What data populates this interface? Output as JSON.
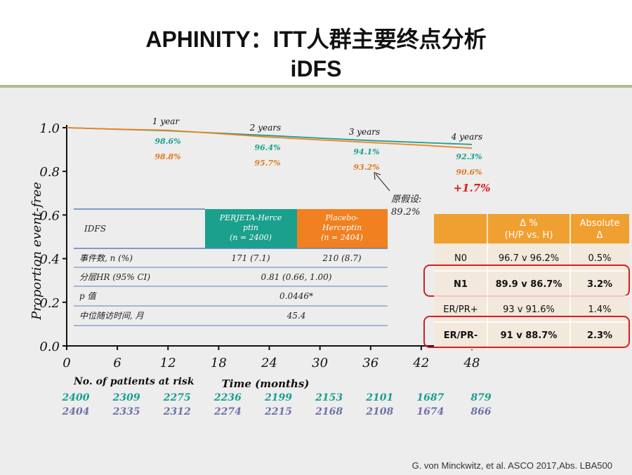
{
  "title": {
    "line1": "APHINITY：ITT人群主要终点分析",
    "line2": "iDFS"
  },
  "citation": "G. von Minckwitz, et al. ASCO 2017,Abs. LBA500",
  "colors": {
    "perjeta": "#1aa08c",
    "placebo": "#f08020",
    "placebo_text": "#e07a20",
    "blue_line": "#5a80b8",
    "red_box": "#d42020",
    "orange_header": "#f0a030",
    "highlight_red": "#e01818",
    "risk_purple": "#7070a8"
  },
  "chart_data": {
    "type": "line",
    "xlabel": "Time (months)",
    "ylabel": "Proportion event-free",
    "xlim": [
      0,
      48
    ],
    "ylim": [
      0.0,
      1.0
    ],
    "xticks": [
      "0",
      "6",
      "12",
      "18",
      "24",
      "30",
      "36",
      "42",
      "48"
    ],
    "yticks": [
      "0.0",
      "0.2",
      "0.4",
      "0.6",
      "0.8",
      "1.0"
    ],
    "series": [
      {
        "name": "PERJETA-Herceptin",
        "color": "#1aa08c",
        "x": [
          0,
          6,
          12,
          18,
          24,
          30,
          36,
          42,
          48
        ],
        "y": [
          1.0,
          0.993,
          0.986,
          0.975,
          0.964,
          0.952,
          0.941,
          0.932,
          0.923
        ]
      },
      {
        "name": "Placebo-Herceptin",
        "color": "#f08020",
        "x": [
          0,
          6,
          12,
          18,
          24,
          30,
          36,
          42,
          48
        ],
        "y": [
          1.0,
          0.993,
          0.988,
          0.973,
          0.957,
          0.944,
          0.932,
          0.92,
          0.906
        ]
      }
    ],
    "annotations": [
      {
        "label": "1 year",
        "perjeta": "98.6%",
        "placebo": "98.8%"
      },
      {
        "label": "2 years",
        "perjeta": "96.4%",
        "placebo": "95.7%"
      },
      {
        "label": "3  years",
        "perjeta": "94.1%",
        "placebo": "93.2%"
      },
      {
        "label": "4 years",
        "perjeta": "92.3%",
        "placebo": "90.6%"
      }
    ],
    "delta_4y": "+1.7%",
    "assumption": {
      "line1": "原假设:",
      "line2": "89.2%"
    },
    "risk_table": {
      "label": "No. of patients at risk",
      "perjeta": [
        "2400",
        "2309",
        "2275",
        "2236",
        "2199",
        "2153",
        "2101",
        "1687",
        "879"
      ],
      "placebo": [
        "2404",
        "2335",
        "2312",
        "2274",
        "2215",
        "2168",
        "2108",
        "1674",
        "866"
      ]
    }
  },
  "inner_table": {
    "col0_header": "IDFS",
    "col1_header": "PERJETA-Hercep tin (n = 2400)",
    "col1_header_l1": "PERJETA-Herce",
    "col1_header_l2": "ptin",
    "col1_header_l3": "(n = 2400)",
    "col2_header_l1": "Placebo-",
    "col2_header_l2": "Herceptin",
    "col2_header_l3": "(n = 2404)",
    "rows": [
      {
        "label": "事件数, n (%)",
        "v1": "171 (7.1)",
        "v2": "210 (8.7)"
      },
      {
        "label": "分层HR (95% CI)",
        "merged": "0.81 (0.66, 1.00)"
      },
      {
        "label": "p  值",
        "merged": "0.0446*"
      },
      {
        "label": "中位随访时间, 月",
        "merged": "45.4"
      }
    ]
  },
  "subgroup_table": {
    "headers": [
      "",
      "Δ %\n(H/P vs. H)",
      "Absolute\nΔ"
    ],
    "header_l1": [
      "",
      "Δ %",
      "Absolute"
    ],
    "header_l2": [
      "",
      "(H/P vs. H)",
      "Δ"
    ],
    "rows": [
      {
        "group": "N0",
        "delta": "96.7 v 96.2%",
        "abs": "0.5%",
        "highlight": false
      },
      {
        "group": "N1",
        "delta": "89.9 v 86.7%",
        "abs": "3.2%",
        "highlight": true
      },
      {
        "group": "ER/PR+",
        "delta": "93 v 91.6%",
        "abs": "1.4%",
        "highlight": false
      },
      {
        "group": "ER/PR-",
        "delta": "91 v 88.7%",
        "abs": "2.3%",
        "highlight": true
      }
    ]
  }
}
